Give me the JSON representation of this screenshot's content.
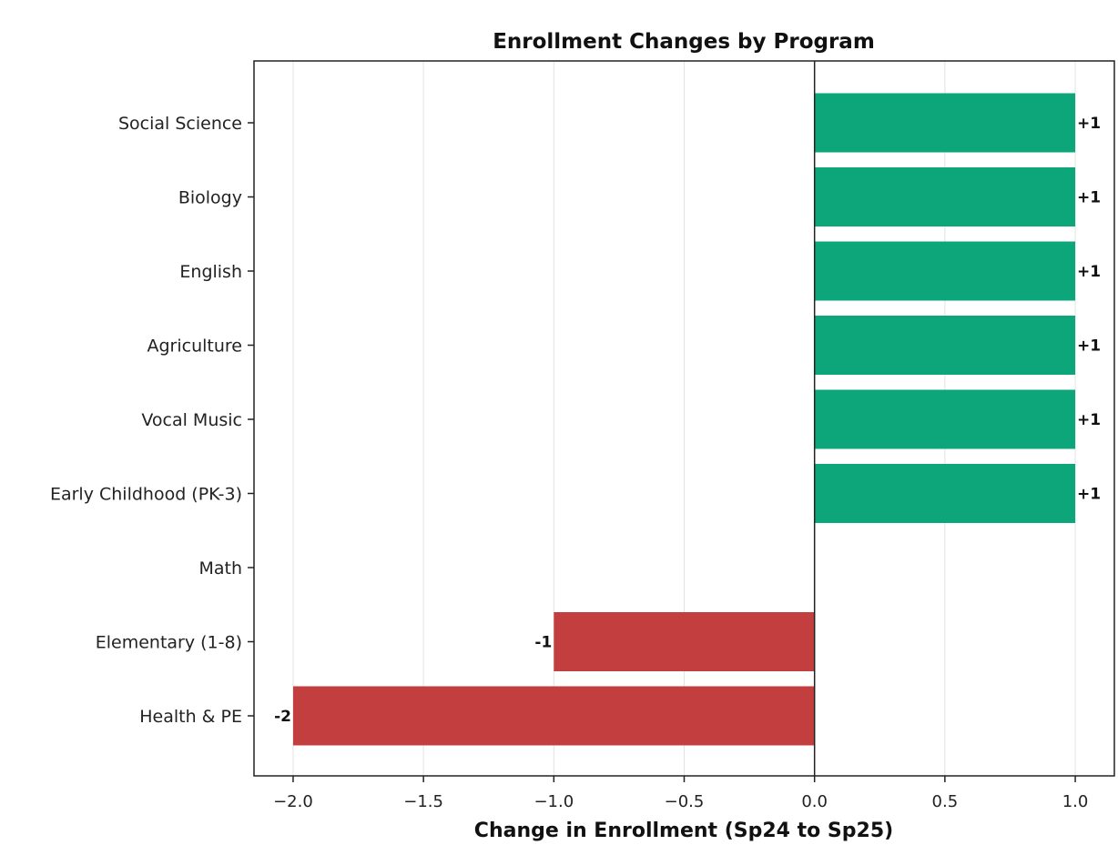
{
  "chart_data": {
    "type": "bar",
    "orientation": "horizontal",
    "title": "Enrollment Changes by Program",
    "xlabel": "Change in Enrollment (Sp24 to Sp25)",
    "ylabel": "",
    "categories": [
      "Social Science",
      "Biology",
      "English",
      "Agriculture",
      "Vocal Music",
      "Early Childhood (PK-3)",
      "Math",
      "Elementary (1-8)",
      "Health & PE"
    ],
    "values": [
      1,
      1,
      1,
      1,
      1,
      1,
      0,
      -1,
      -2
    ],
    "data_labels": [
      "+1",
      "+1",
      "+1",
      "+1",
      "+1",
      "+1",
      "",
      "-1",
      "-2"
    ],
    "xlim": [
      -2.15,
      1.15
    ],
    "xticks": [
      -2.0,
      -1.5,
      -1.0,
      -0.5,
      0.0,
      0.5,
      1.0
    ],
    "xtick_labels": [
      "−2.0",
      "−1.5",
      "−1.0",
      "−0.5",
      "0.0",
      "0.5",
      "1.0"
    ],
    "grid": "x",
    "colors": {
      "positive": "#0ca67a",
      "negative": "#c33f3f",
      "grid": "#e3e3e3",
      "axis": "#222222"
    }
  }
}
